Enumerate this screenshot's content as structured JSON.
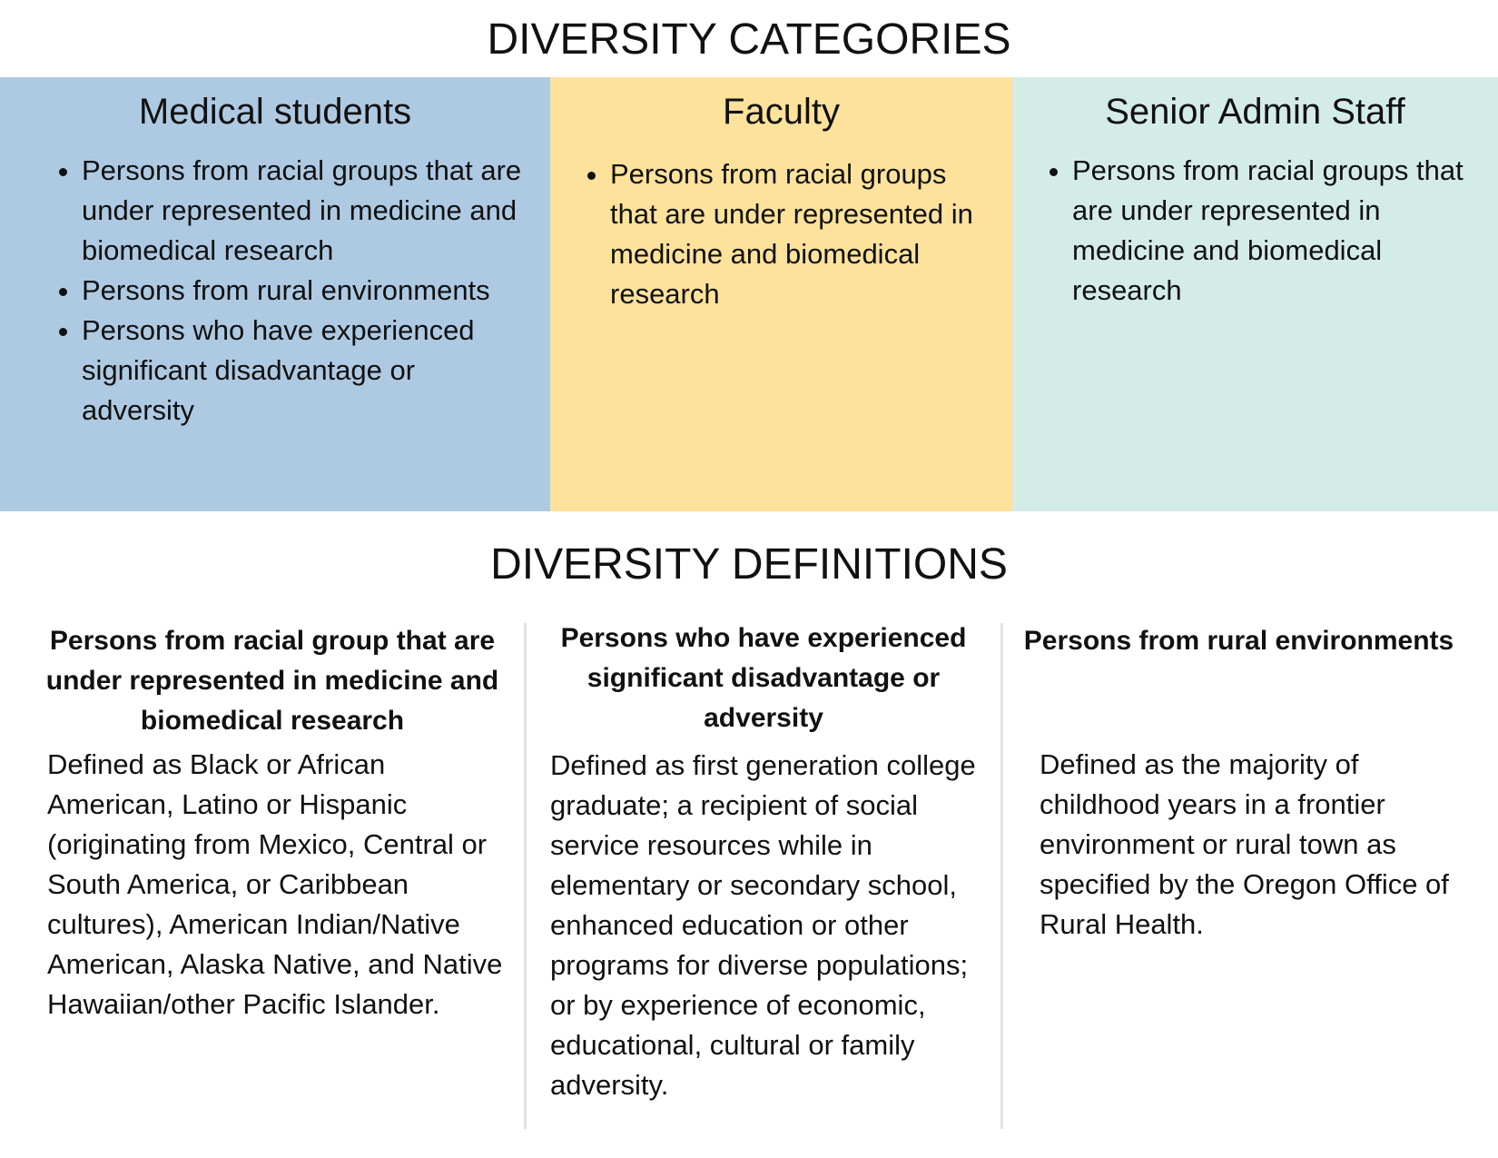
{
  "categories": {
    "title": "DIVERSITY CATEGORIES",
    "columns": [
      {
        "heading": "Medical students",
        "items": [
          "Persons from racial groups that are under represented in medicine and biomedical research",
          "Persons from rural environments",
          "Persons who have experienced significant disadvantage or adversity"
        ]
      },
      {
        "heading": "Faculty",
        "items": [
          "Persons from racial groups that are under represented in medicine and biomedical research"
        ]
      },
      {
        "heading": "Senior Admin Staff",
        "items": [
          "Persons from racial groups that are under represented in medicine and biomedical research"
        ]
      }
    ]
  },
  "definitions": {
    "title": "DIVERSITY DEFINITIONS",
    "columns": [
      {
        "heading": "Persons from racial group that are under represented in medicine and biomedical research",
        "text": "Defined as Black or African American, Latino or Hispanic (originating from Mexico, Central or South America, or Caribbean cultures), American Indian/Native American, Alaska Native, and Native Hawaiian/other Pacific Islander."
      },
      {
        "heading": "Persons who have experienced significant disadvantage or adversity",
        "text": "Defined as first generation college graduate; a recipient of social service resources while in elementary or secondary school, enhanced education or other programs for diverse populations; or by experience of economic, educational, cultural or family adversity."
      },
      {
        "heading": "Persons from rural environments",
        "text": "Defined as the majority of childhood years in a frontier environment or rural town as specified by the Oregon Office of Rural Health."
      }
    ]
  }
}
